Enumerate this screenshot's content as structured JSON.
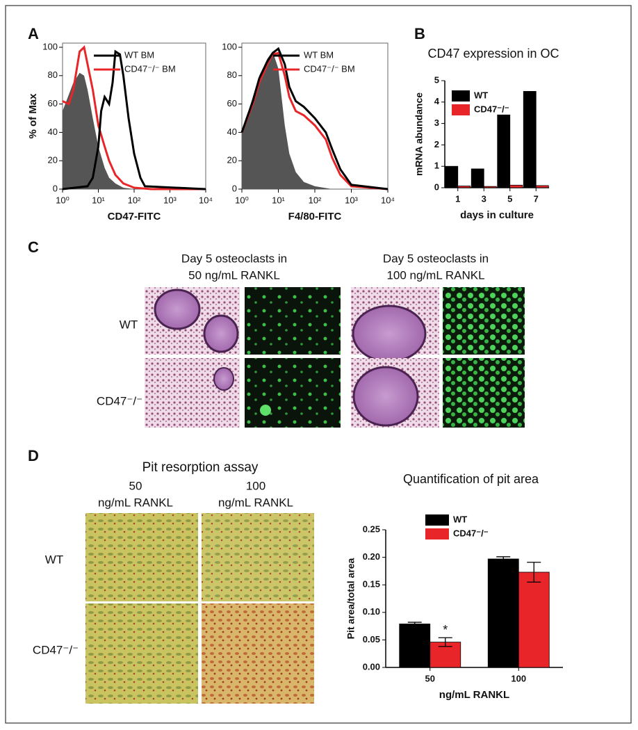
{
  "panel_letters": [
    "A",
    "B",
    "C",
    "D"
  ],
  "chart_data": [
    {
      "type": "histogram-line",
      "xlabel": "CD47-FITC",
      "ylabel": "% of Max",
      "xscale": "log",
      "xlim": [
        1,
        10000
      ],
      "ylim": [
        0,
        100
      ],
      "xticks": [
        {
          "value": 1,
          "label": "10⁰"
        },
        {
          "value": 10,
          "label": "10¹"
        },
        {
          "value": 100,
          "label": "10²"
        },
        {
          "value": 1000,
          "label": "10³"
        },
        {
          "value": 10000,
          "label": "10⁴"
        }
      ],
      "yticks": [
        0,
        20,
        40,
        60,
        80,
        100
      ],
      "series": [
        {
          "color": "#555555",
          "fill": true,
          "x": [
            1,
            2,
            3,
            4,
            5,
            7,
            10,
            15,
            20,
            30,
            50,
            100,
            10000
          ],
          "values": [
            55,
            75,
            82,
            80,
            70,
            50,
            30,
            15,
            8,
            4,
            1,
            0,
            0
          ]
        },
        {
          "name": "CD47⁻/⁻ BM",
          "color": "#e8262a",
          "x": [
            1,
            1.5,
            2,
            3,
            4,
            5,
            7,
            10,
            15,
            20,
            30,
            50,
            100,
            300,
            10000
          ],
          "values": [
            62,
            60,
            70,
            97,
            100,
            88,
            70,
            45,
            30,
            20,
            10,
            4,
            1,
            0,
            0
          ]
        },
        {
          "name": "WT BM",
          "color": "#000000",
          "x": [
            1,
            5,
            7,
            10,
            12,
            15,
            20,
            25,
            30,
            40,
            50,
            70,
            100,
            150,
            200,
            10000
          ],
          "values": [
            0,
            2,
            8,
            30,
            55,
            65,
            60,
            75,
            97,
            95,
            80,
            50,
            25,
            8,
            2,
            0
          ]
        }
      ]
    },
    {
      "type": "histogram-line",
      "xlabel": "F4/80-FITC",
      "xscale": "log",
      "xlim": [
        1,
        10000
      ],
      "ylim": [
        0,
        100
      ],
      "xticks": [
        {
          "value": 1,
          "label": "10⁰"
        },
        {
          "value": 10,
          "label": "10¹"
        },
        {
          "value": 100,
          "label": "10²"
        },
        {
          "value": 1000,
          "label": "10³"
        },
        {
          "value": 10000,
          "label": "10⁴"
        }
      ],
      "yticks": [
        0,
        20,
        40,
        60,
        80,
        100
      ],
      "series": [
        {
          "color": "#555555",
          "fill": true,
          "x": [
            1,
            2,
            3,
            5,
            7,
            10,
            15,
            20,
            30,
            50,
            100,
            300,
            10000
          ],
          "values": [
            40,
            65,
            80,
            92,
            97,
            85,
            45,
            25,
            12,
            5,
            2,
            0,
            0
          ]
        },
        {
          "name": "CD47⁻/⁻ BM",
          "color": "#e8262a",
          "x": [
            1,
            2,
            3,
            5,
            7,
            10,
            15,
            20,
            30,
            50,
            100,
            200,
            300,
            500,
            1000,
            10000
          ],
          "values": [
            40,
            60,
            75,
            88,
            95,
            96,
            80,
            65,
            55,
            52,
            45,
            35,
            22,
            10,
            2,
            0
          ]
        },
        {
          "name": "WT BM",
          "color": "#000000",
          "x": [
            1,
            2,
            3,
            5,
            7,
            10,
            15,
            20,
            30,
            50,
            100,
            200,
            300,
            500,
            1000,
            10000
          ],
          "values": [
            40,
            62,
            78,
            90,
            96,
            99,
            88,
            72,
            62,
            58,
            50,
            40,
            28,
            14,
            3,
            0
          ]
        }
      ]
    },
    {
      "type": "bar",
      "title": "CD47 expression in OC",
      "xlabel": "days in culture",
      "ylabel": "mRNA abundance",
      "categories": [
        "1",
        "3",
        "5",
        "7"
      ],
      "ylim": [
        0,
        5
      ],
      "yticks": [
        0,
        1,
        2,
        3,
        4,
        5
      ],
      "series": [
        {
          "name": "WT",
          "color": "#000000",
          "values": [
            1.0,
            0.88,
            3.4,
            4.5
          ]
        },
        {
          "name": "CD47⁻/⁻",
          "color": "#e8262a",
          "values": [
            0.08,
            0.06,
            0.12,
            0.1
          ]
        }
      ]
    },
    {
      "type": "bar",
      "title": "Quantification of pit area",
      "xlabel": "ng/mL  RANKL",
      "ylabel": "Pit area/total area",
      "categories": [
        "50",
        "100"
      ],
      "ylim": [
        0,
        0.25
      ],
      "yticks": [
        {
          "value": 0,
          "label": "0.00"
        },
        {
          "value": 0.05,
          "label": "0.05"
        },
        {
          "value": 0.1,
          "label": "0.10"
        },
        {
          "value": 0.15,
          "label": "0.15"
        },
        {
          "value": 0.2,
          "label": "0.20"
        },
        {
          "value": 0.25,
          "label": "0.25"
        }
      ],
      "series": [
        {
          "name": "WT",
          "color": "#000000",
          "values": [
            0.079,
            0.197
          ],
          "errors": [
            0.003,
            0.004
          ]
        },
        {
          "name": "CD47⁻/⁻",
          "color": "#e8262a",
          "values": [
            0.046,
            0.173
          ],
          "errors": [
            0.008,
            0.018
          ]
        }
      ],
      "annotations": [
        {
          "text": "*",
          "series": 1,
          "category": 0
        }
      ]
    }
  ],
  "panel_c": {
    "col_title_line1": "Day 5 osteoclasts in",
    "col_titles_line2": [
      "50 ng/mL RANKL",
      "100 ng/mL RANKL"
    ],
    "rows": [
      "WT",
      "CD47⁻/⁻"
    ]
  },
  "panel_d": {
    "title": "Pit resorption assay",
    "col_numbers": [
      "50",
      "100"
    ],
    "col_unit": "ng/mL RANKL",
    "rows": [
      "WT",
      "CD47⁻/⁻"
    ]
  }
}
